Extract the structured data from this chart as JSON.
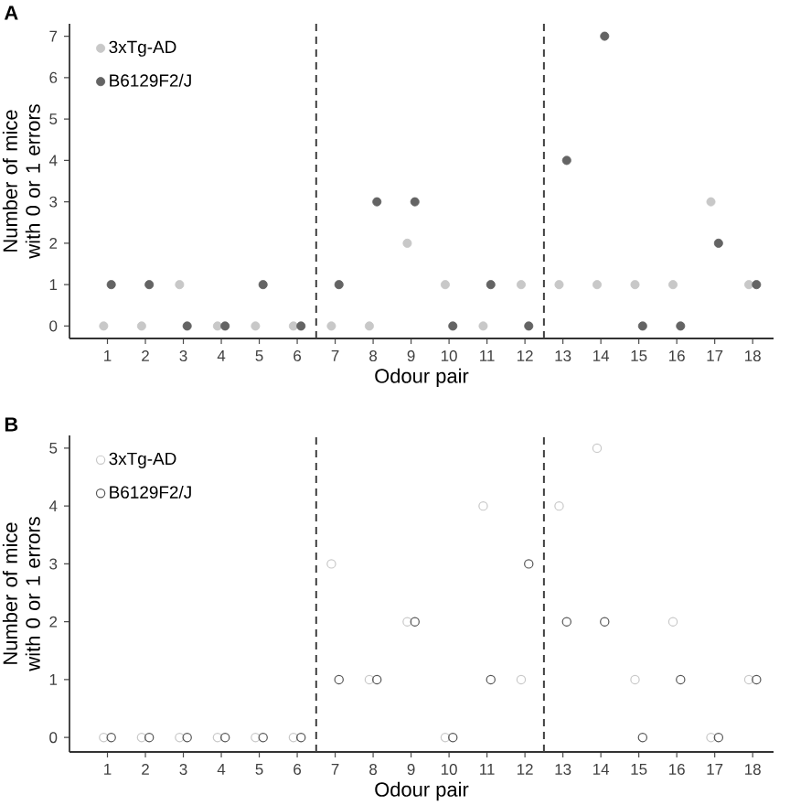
{
  "chart_data": [
    {
      "type": "scatter",
      "xlabel": "Odour pair",
      "ylabel": "Number of mice with 0 or 1 errors",
      "annotations": [
        "A"
      ],
      "marker": "circle",
      "legend": "top left",
      "grid": false,
      "xlim": [
        0,
        18.55
      ],
      "ylim": [
        -0.3,
        7.3
      ],
      "xticks": [
        1,
        2,
        3,
        4,
        5,
        6,
        7,
        8,
        9,
        10,
        11,
        12,
        13,
        14,
        15,
        16,
        17,
        18
      ],
      "yticks": [
        0,
        1,
        2,
        3,
        4,
        5,
        6,
        7
      ],
      "ref_lines": [
        {
          "axis": "x",
          "value": 6.5,
          "color": "#404040",
          "line_style": "dashed"
        },
        {
          "axis": "x",
          "value": 12.5,
          "color": "#404040",
          "line_style": "dashed"
        }
      ],
      "series": [
        {
          "name": "3xTg-AD",
          "color": "#c8c8c8",
          "x": [
            0.9,
            1.9,
            2.9,
            3.9,
            4.9,
            5.9,
            6.9,
            7.9,
            8.9,
            9.9,
            10.9,
            11.9,
            12.9,
            13.9,
            14.9,
            15.9,
            16.9,
            17.9
          ],
          "values": [
            0,
            0,
            1,
            0,
            0,
            0,
            0,
            0,
            2,
            1,
            0,
            1,
            1,
            1,
            1,
            1,
            3,
            1
          ]
        },
        {
          "name": "B6129F2/J",
          "color": "#646464",
          "x": [
            1.1,
            2.1,
            3.1,
            4.1,
            5.1,
            6.1,
            7.1,
            8.1,
            9.1,
            10.1,
            11.1,
            12.1,
            13.1,
            14.1,
            15.1,
            16.1,
            17.1,
            18.1
          ],
          "values": [
            1,
            1,
            0,
            0,
            1,
            0,
            1,
            3,
            3,
            0,
            1,
            0,
            4,
            7,
            0,
            0,
            2,
            1
          ]
        }
      ]
    },
    {
      "type": "scatter",
      "xlabel": "Odour pair",
      "ylabel": "Number of mice with 0 or 1 errors",
      "annotations": [
        "B"
      ],
      "marker": "circle",
      "legend": "top left",
      "grid": false,
      "xlim": [
        0,
        18.55
      ],
      "ylim": [
        -0.25,
        5.22
      ],
      "xticks": [
        1,
        2,
        3,
        4,
        5,
        6,
        7,
        8,
        9,
        10,
        11,
        12,
        13,
        14,
        15,
        16,
        17,
        18
      ],
      "yticks": [
        0,
        1,
        2,
        3,
        4,
        5
      ],
      "ref_lines": [
        {
          "axis": "x",
          "value": 6.5,
          "color": "#404040",
          "line_style": "dashed"
        },
        {
          "axis": "x",
          "value": 12.5,
          "color": "#404040",
          "line_style": "dashed"
        }
      ],
      "series": [
        {
          "name": "3xTg-AD",
          "color": "#c8c8c8",
          "x": [
            0.9,
            1.9,
            2.9,
            3.9,
            4.9,
            5.9,
            6.9,
            7.9,
            8.9,
            9.9,
            10.9,
            11.9,
            12.9,
            13.9,
            14.9,
            15.9,
            16.9,
            17.9
          ],
          "values": [
            0,
            0,
            0,
            0,
            0,
            0,
            3,
            1,
            2,
            0,
            4,
            1,
            4,
            5,
            1,
            2,
            0,
            1
          ]
        },
        {
          "name": "B6129F2/J",
          "color": "#555555",
          "x": [
            1.1,
            2.1,
            3.1,
            4.1,
            5.1,
            6.1,
            7.1,
            8.1,
            9.1,
            10.1,
            11.1,
            12.1,
            13.1,
            14.1,
            15.1,
            16.1,
            17.1,
            18.1
          ],
          "values": [
            0,
            0,
            0,
            0,
            0,
            0,
            1,
            1,
            2,
            0,
            1,
            3,
            2,
            2,
            0,
            1,
            0,
            1
          ]
        }
      ]
    }
  ]
}
